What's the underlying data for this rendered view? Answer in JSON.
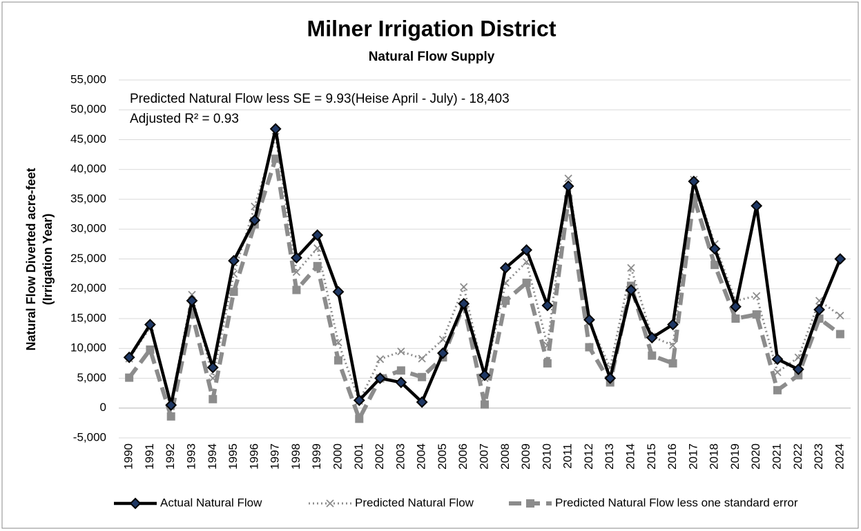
{
  "chart_data": {
    "type": "line",
    "title": "Milner Irrigation District",
    "subtitle": "Natural Flow Supply",
    "y_label": [
      "Natural Flow Diverted acre-feet",
      "(Irrigation Year)"
    ],
    "annotations": [
      "Predicted Natural Flow less SE = 9.93(Heise April - July) - 18,403",
      "Adjusted R² = 0.93"
    ],
    "categories": [
      "1990",
      "1991",
      "1992",
      "1993",
      "1994",
      "1995",
      "1996",
      "1997",
      "1998",
      "1999",
      "2000",
      "2001",
      "2002",
      "2003",
      "2004",
      "2005",
      "2006",
      "2007",
      "2008",
      "2009",
      "2010",
      "2011",
      "2012",
      "2013",
      "2014",
      "2015",
      "2016",
      "2017",
      "2018",
      "2019",
      "2020",
      "2021",
      "2022",
      "2023",
      "2024"
    ],
    "series": [
      {
        "name": "Actual Natural Flow",
        "color": "#000000",
        "marker": "diamond",
        "dash": "solid",
        "values": [
          8500,
          14000,
          500,
          18000,
          6800,
          24700,
          31500,
          46800,
          25200,
          29000,
          19500,
          1300,
          5000,
          4300,
          1000,
          9200,
          17500,
          5500,
          23500,
          26500,
          17200,
          37200,
          14800,
          5000,
          19800,
          11800,
          14000,
          38000,
          26700,
          17000,
          33900,
          8200,
          6500,
          16500,
          25000
        ]
      },
      {
        "name": "Predicted Natural Flow",
        "color": "#8c8c8c",
        "marker": "x",
        "dash": "dotted",
        "values": [
          8300,
          13500,
          900,
          19000,
          5000,
          22500,
          33800,
          45500,
          22800,
          26800,
          11000,
          1200,
          8200,
          9500,
          8300,
          11500,
          20300,
          5000,
          21000,
          24500,
          10500,
          38500,
          14500,
          6800,
          23500,
          12000,
          10500,
          38300,
          27500,
          18000,
          18800,
          6000,
          8500,
          18000,
          15500
        ]
      },
      {
        "name": "Predicted Natural Flow less one standard error",
        "color": "#8c8c8c",
        "marker": "square",
        "dash": "dashed",
        "values": [
          5100,
          9800,
          -1400,
          16000,
          1500,
          19500,
          30800,
          41800,
          19800,
          23800,
          8000,
          -1800,
          5000,
          6300,
          5200,
          8500,
          17300,
          600,
          18000,
          21000,
          7500,
          35000,
          10200,
          4300,
          20500,
          8800,
          7500,
          35300,
          24000,
          15000,
          15700,
          3000,
          5500,
          15000,
          12400
        ]
      }
    ],
    "ylim": [
      -5000,
      55000
    ],
    "yticks": [
      {
        "value": -5000,
        "label": "-5,000"
      },
      0,
      {
        "value": 5000,
        "label": "5,000"
      },
      {
        "value": 10000,
        "label": "10,000"
      },
      {
        "value": 15000,
        "label": "15,000"
      },
      {
        "value": 20000,
        "label": "20,000"
      },
      {
        "value": 25000,
        "label": "25,000"
      },
      {
        "value": 30000,
        "label": "30,000"
      },
      {
        "value": 35000,
        "label": "35,000"
      },
      {
        "value": 40000,
        "label": "40,000"
      },
      {
        "value": 45000,
        "label": "45,000"
      },
      {
        "value": 50000,
        "label": "50,000"
      },
      {
        "value": 55000,
        "label": "55,000"
      }
    ],
    "grid": true,
    "legend": "bottom"
  }
}
